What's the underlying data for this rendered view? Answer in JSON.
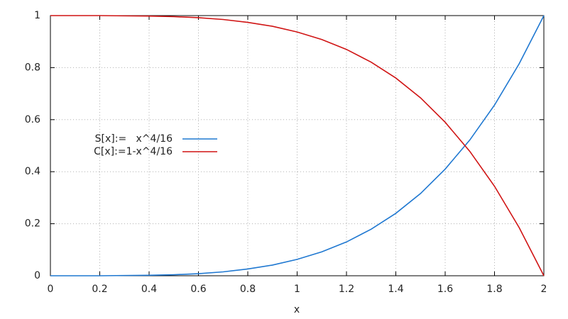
{
  "chart_data": {
    "type": "line",
    "xlabel": "x",
    "x": [
      0,
      0.1,
      0.2,
      0.3,
      0.4,
      0.5,
      0.6,
      0.7,
      0.8,
      0.9,
      1,
      1.1,
      1.2,
      1.3,
      1.4,
      1.5,
      1.6,
      1.7,
      1.8,
      1.9,
      2
    ],
    "series": [
      {
        "name": "S[x]:=   x^4/16",
        "color": "#1f78d1",
        "values": [
          0,
          0,
          0,
          0.001,
          0.002,
          0.004,
          0.008,
          0.015,
          0.026,
          0.041,
          0.063,
          0.092,
          0.13,
          0.179,
          0.24,
          0.316,
          0.41,
          0.522,
          0.656,
          0.815,
          1
        ]
      },
      {
        "name": "C[x]:=1-x^4/16",
        "color": "#d01414",
        "values": [
          1,
          1,
          1,
          0.999,
          0.998,
          0.996,
          0.992,
          0.985,
          0.974,
          0.959,
          0.937,
          0.908,
          0.87,
          0.821,
          0.76,
          0.684,
          0.59,
          0.478,
          0.344,
          0.185,
          0
        ]
      }
    ],
    "xlim": [
      0,
      2
    ],
    "xticks": [
      0,
      0.2,
      0.4,
      0.6,
      0.8,
      1,
      1.2,
      1.4,
      1.6,
      1.8,
      2
    ],
    "ylim": [
      0,
      1
    ],
    "yticks": [
      0,
      0.2,
      0.4,
      0.6,
      0.8,
      1
    ],
    "grid": true,
    "legend": "left"
  }
}
